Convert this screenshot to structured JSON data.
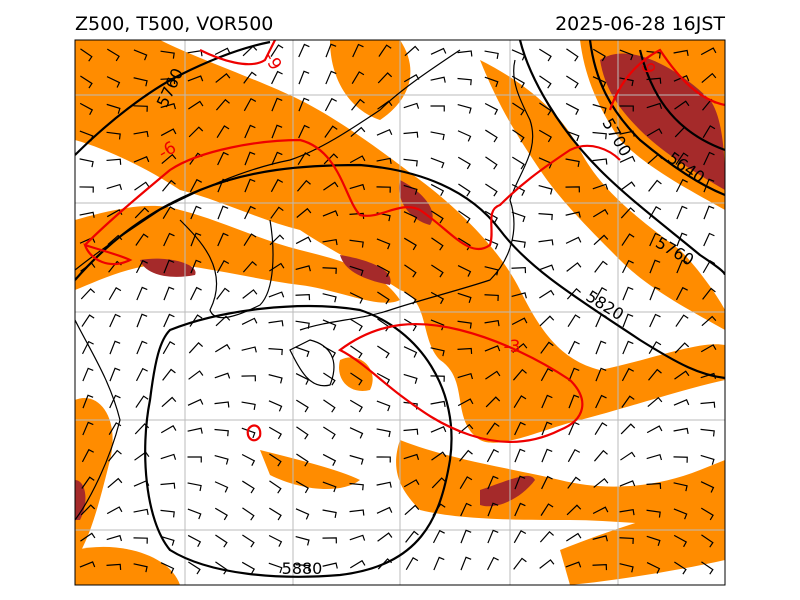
{
  "header": {
    "title_left": "Z500, T500, VOR500",
    "title_right": "2025-06-28 16JST"
  },
  "height_contour_labels": [
    "5760",
    "5700",
    "5640",
    "5760",
    "5820",
    "5880"
  ],
  "temperature_contour_labels": [
    "-9",
    "-6",
    "-9",
    "-3",
    "0"
  ]
}
